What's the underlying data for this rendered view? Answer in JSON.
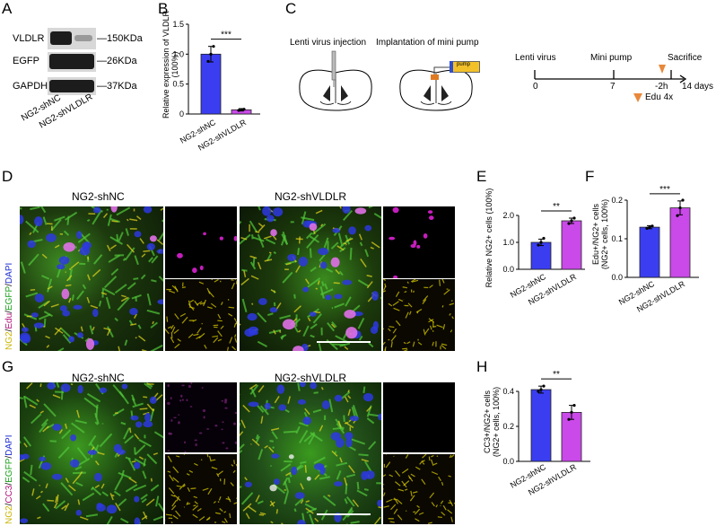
{
  "panels": {
    "A": "A",
    "B": "B",
    "C": "C",
    "D": "D",
    "E": "E",
    "F": "F",
    "G": "G",
    "H": "H"
  },
  "western": {
    "proteins": [
      "VLDLR",
      "EGFP",
      "GAPDH"
    ],
    "sizes": [
      "—150KDa",
      "—26KDa",
      "—37KDa"
    ],
    "lanes": [
      "NG2-shNC",
      "NG2-shVLDLR"
    ]
  },
  "panelC": {
    "step1": "Lenti virus injection",
    "step2": "Implantation of mini pump",
    "pump": "pump",
    "timeline": {
      "labels": [
        "Lenti virus",
        "Mini pump",
        "Sacrifice"
      ],
      "ticks": [
        "0",
        "7",
        "-2h",
        "14 days"
      ],
      "edu": "Edu 4x"
    }
  },
  "panelD": {
    "title_left": "NG2-shNC",
    "title_right": "NG2-shVLDLR",
    "stain_label": [
      "NG2",
      "/",
      "Edu",
      "/",
      "EGFP",
      "/",
      "DAPI"
    ]
  },
  "panelG": {
    "title_left": "NG2-shNC",
    "title_right": "NG2-shVLDLR",
    "stain_label": [
      "NG2",
      "/",
      "CC3",
      "/",
      "EGFP",
      "/",
      "DAPI"
    ]
  },
  "colors": {
    "blue": "#3a3ef0",
    "magenta": "#c94ae8",
    "ng2": "#d6c400",
    "edu": "#c8008c",
    "egfp": "#18a018",
    "dapi": "#1a2ad0"
  },
  "chart_data": [
    {
      "id": "B",
      "type": "bar",
      "categories": [
        "NG2-shNC",
        "NG2-shVLDLR"
      ],
      "values": [
        1.0,
        0.07
      ],
      "errors": [
        0.13,
        0.02
      ],
      "points": [
        [
          0.88,
          1.0,
          1.13
        ],
        [
          0.06,
          0.07,
          0.08
        ]
      ],
      "ylabel": "Relative expression of VLDLR (100%)",
      "ylim": [
        0,
        1.5
      ],
      "yticks": [
        "0",
        "0.5",
        "1.0",
        "1.5"
      ],
      "yticks_values": [
        0,
        0.5,
        1.0,
        1.5
      ],
      "significance": "***"
    },
    {
      "id": "E",
      "type": "bar",
      "categories": [
        "NG2-shNC",
        "NG2-shVLDLR"
      ],
      "values": [
        1.0,
        1.8
      ],
      "errors": [
        0.12,
        0.1
      ],
      "points": [
        [
          0.9,
          1.0,
          1.15
        ],
        [
          1.7,
          1.8,
          1.9
        ]
      ],
      "ylabel": "Relative NG2+ cells (100%)",
      "ylim": [
        0,
        2.0
      ],
      "yticks": [
        "0.0",
        "1.0",
        "2.0"
      ],
      "yticks_values": [
        0,
        1.0,
        2.0
      ],
      "significance": "**"
    },
    {
      "id": "F",
      "type": "bar",
      "categories": [
        "NG2-shNC",
        "NG2-shVLDLR"
      ],
      "values": [
        0.13,
        0.18
      ],
      "errors": [
        0.004,
        0.018
      ],
      "points": [
        [
          0.127,
          0.13,
          0.133
        ],
        [
          0.16,
          0.18,
          0.2
        ]
      ],
      "ylabel": "Edu+/NG2+ cells (NG2+ cells, 100%)",
      "ylim": [
        0,
        0.2
      ],
      "yticks": [
        "0.0",
        "0.1",
        "0.2"
      ],
      "yticks_values": [
        0,
        0.1,
        0.2
      ],
      "significance": "***"
    },
    {
      "id": "H",
      "type": "bar",
      "categories": [
        "NG2-shNC",
        "NG2-shVLDLR"
      ],
      "values": [
        0.41,
        0.28
      ],
      "errors": [
        0.02,
        0.04
      ],
      "points": [
        [
          0.4,
          0.41,
          0.43
        ],
        [
          0.24,
          0.28,
          0.32
        ]
      ],
      "ylabel": "CC3+/NG2+ cells (NG2+ cells, 100%)",
      "ylim": [
        0,
        0.4
      ],
      "yticks": [
        "0.0",
        "0.2",
        "0.4"
      ],
      "yticks_values": [
        0,
        0.2,
        0.4
      ],
      "significance": "**"
    }
  ]
}
